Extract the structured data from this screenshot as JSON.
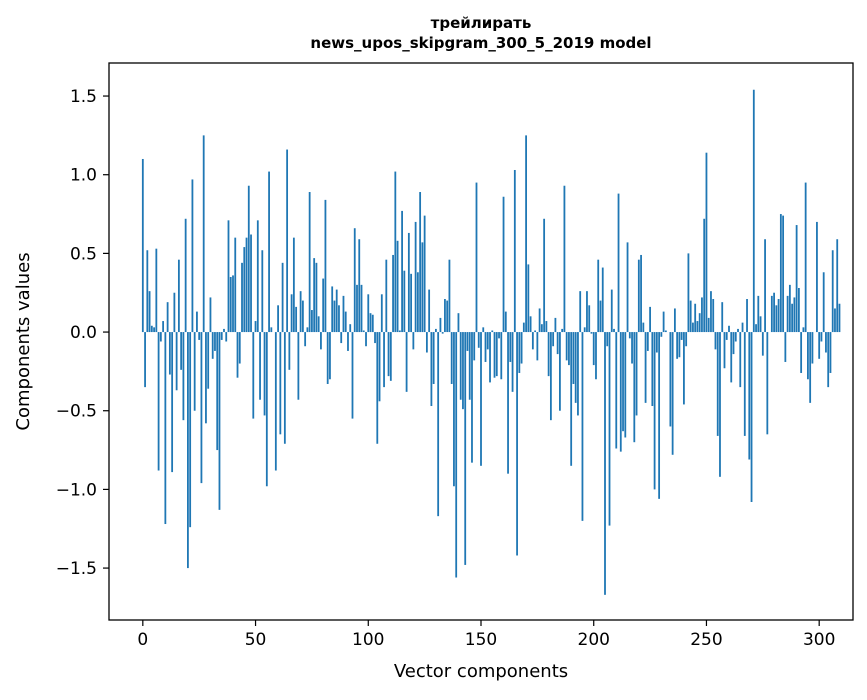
{
  "chart_data": {
    "type": "bar",
    "title": [
      "трейлирать",
      "news_upos_skipgram_300_5_2019 model"
    ],
    "xlabel": "Vector components",
    "ylabel": "Components values",
    "xlim": [
      -15,
      315
    ],
    "ylim": [
      -1.83,
      1.71
    ],
    "xticks": [
      0,
      50,
      100,
      150,
      200,
      250,
      300
    ],
    "xtick_labels": [
      "0",
      "50",
      "100",
      "150",
      "200",
      "250",
      "300"
    ],
    "yticks": [
      -1.5,
      -1.0,
      -0.5,
      0.0,
      0.5,
      1.0,
      1.5
    ],
    "ytick_labels": [
      "−1.5",
      "−1.0",
      "−0.5",
      "0.0",
      "0.5",
      "1.0",
      "1.5"
    ],
    "bar_color": "#1f77b4",
    "values": [
      1.1,
      -0.35,
      0.52,
      0.26,
      0.04,
      0.03,
      0.53,
      -0.88,
      -0.06,
      0.07,
      -1.22,
      0.19,
      -0.27,
      -0.89,
      0.25,
      -0.37,
      0.46,
      -0.24,
      -0.56,
      0.72,
      -1.5,
      -1.24,
      0.97,
      -0.5,
      0.13,
      -0.05,
      -0.96,
      1.25,
      -0.58,
      -0.36,
      0.22,
      -0.17,
      -0.12,
      -0.75,
      -1.13,
      -0.05,
      0.02,
      -0.06,
      0.71,
      0.35,
      0.36,
      0.6,
      -0.29,
      -0.2,
      0.44,
      0.54,
      0.6,
      0.93,
      0.62,
      -0.55,
      0.07,
      0.71,
      -0.43,
      0.52,
      -0.53,
      -0.98,
      1.02,
      0.03,
      0.0,
      -0.88,
      0.17,
      -0.65,
      0.44,
      -0.71,
      1.16,
      -0.24,
      0.24,
      0.6,
      0.16,
      -0.43,
      0.26,
      0.2,
      -0.09,
      0.03,
      0.89,
      0.14,
      0.47,
      0.44,
      0.1,
      -0.11,
      0.34,
      0.84,
      -0.33,
      -0.3,
      0.29,
      0.2,
      0.27,
      0.17,
      -0.07,
      0.23,
      0.13,
      -0.12,
      0.05,
      -0.55,
      0.66,
      0.3,
      0.59,
      0.3,
      0.01,
      -0.09,
      0.24,
      0.12,
      0.11,
      -0.07,
      -0.71,
      -0.44,
      0.24,
      -0.35,
      0.46,
      -0.28,
      -0.31,
      0.49,
      1.02,
      0.58,
      0.01,
      0.77,
      0.39,
      -0.38,
      0.63,
      0.37,
      -0.11,
      0.7,
      0.38,
      0.89,
      0.57,
      0.74,
      -0.13,
      0.27,
      -0.47,
      -0.33,
      0.02,
      -1.17,
      0.09,
      -0.01,
      0.21,
      0.2,
      0.46,
      -0.33,
      -0.98,
      -1.56,
      0.12,
      -0.43,
      -0.49,
      -1.48,
      -0.12,
      -0.43,
      -0.83,
      -0.18,
      0.95,
      -0.1,
      -0.85,
      0.03,
      -0.19,
      -0.11,
      -0.32,
      0.01,
      -0.29,
      -0.28,
      -0.04,
      -0.3,
      0.86,
      0.13,
      -0.9,
      -0.19,
      -0.38,
      1.03,
      -1.42,
      -0.26,
      -0.2,
      0.06,
      1.25,
      0.43,
      0.1,
      -0.11,
      0.01,
      -0.18,
      0.15,
      0.05,
      0.72,
      0.07,
      -0.28,
      -0.56,
      -0.09,
      0.09,
      -0.14,
      -0.5,
      0.02,
      0.93,
      -0.18,
      -0.21,
      -0.85,
      -0.33,
      -0.45,
      -0.53,
      0.26,
      -1.2,
      0.03,
      0.26,
      0.17,
      -0.01,
      -0.21,
      -0.3,
      0.46,
      0.2,
      0.41,
      -1.67,
      -0.09,
      -1.23,
      0.27,
      0.02,
      -0.74,
      0.88,
      -0.76,
      -0.63,
      -0.67,
      0.57,
      -0.04,
      -0.2,
      -0.7,
      -0.53,
      0.46,
      0.49,
      0.06,
      -0.45,
      -0.12,
      0.16,
      -0.47,
      -1.0,
      -0.13,
      -1.06,
      -0.03,
      0.13,
      0.01,
      0.0,
      -0.6,
      -0.78,
      0.15,
      -0.17,
      -0.16,
      -0.05,
      -0.46,
      -0.09,
      0.5,
      0.2,
      0.06,
      0.18,
      0.07,
      0.12,
      0.22,
      0.72,
      1.14,
      0.09,
      0.26,
      0.21,
      -0.11,
      -0.66,
      -0.92,
      0.19,
      -0.23,
      -0.05,
      0.04,
      -0.32,
      -0.14,
      -0.06,
      0.02,
      -0.35,
      0.06,
      -0.66,
      0.21,
      -0.81,
      -1.08,
      1.54,
      0.05,
      0.23,
      0.1,
      -0.15,
      0.59,
      -0.65,
      0.0,
      0.23,
      0.25,
      0.17,
      0.21,
      0.75,
      0.74,
      -0.19,
      0.23,
      0.3,
      0.18,
      0.22,
      0.68,
      0.28,
      -0.26,
      0.03,
      0.95,
      -0.3,
      -0.45,
      -0.2,
      0.0,
      0.7,
      -0.17,
      -0.06,
      0.38,
      -0.13,
      -0.35,
      -0.26,
      0.52,
      0.15,
      0.59,
      0.18
    ]
  }
}
